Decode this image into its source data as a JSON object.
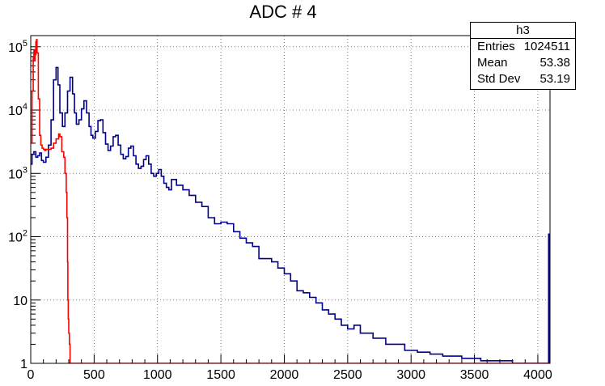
{
  "chart_data": {
    "type": "line",
    "title": "ADC # 4",
    "xlabel": "",
    "ylabel": "",
    "xlim": [
      0,
      4096
    ],
    "ylim": [
      1,
      150000
    ],
    "yscale": "log",
    "grid": true,
    "x_ticks": [
      0,
      500,
      1000,
      1500,
      2000,
      2500,
      3000,
      3500,
      4000
    ],
    "x_tick_labels": [
      "0",
      "500",
      "1000",
      "1500",
      "2000",
      "2500",
      "3000",
      "3500",
      "4000"
    ],
    "y_ticks": [
      1,
      10,
      100,
      1000,
      10000,
      100000
    ],
    "y_tick_labels": [
      {
        "base": "1",
        "exp": ""
      },
      {
        "base": "10",
        "exp": ""
      },
      {
        "base": "10",
        "exp": "2"
      },
      {
        "base": "10",
        "exp": "3"
      },
      {
        "base": "10",
        "exp": "4"
      },
      {
        "base": "10",
        "exp": "5"
      }
    ],
    "series": [
      {
        "color": "#00008b",
        "x": [
          0,
          10,
          25,
          40,
          55,
          70,
          85,
          100,
          120,
          140,
          160,
          180,
          200,
          215,
          230,
          250,
          270,
          290,
          310,
          330,
          345,
          360,
          380,
          400,
          420,
          440,
          460,
          475,
          490,
          510,
          530,
          550,
          570,
          590,
          610,
          630,
          650,
          670,
          690,
          710,
          730,
          750,
          770,
          790,
          810,
          830,
          850,
          870,
          890,
          910,
          930,
          950,
          970,
          990,
          1010,
          1030,
          1050,
          1070,
          1090,
          1110,
          1150,
          1200,
          1250,
          1300,
          1350,
          1400,
          1450,
          1500,
          1550,
          1600,
          1650,
          1700,
          1750,
          1800,
          1850,
          1900,
          1950,
          2000,
          2050,
          2100,
          2150,
          2200,
          2250,
          2300,
          2350,
          2400,
          2450,
          2500,
          2550,
          2600,
          2650,
          2700,
          2750,
          2800,
          2850,
          2900,
          2950,
          3000,
          3050,
          3100,
          3150,
          3200,
          3250,
          3300,
          3350,
          3400,
          3450,
          3500,
          3550,
          3600,
          3650,
          3700,
          3750,
          3800,
          3850,
          4060,
          4070,
          4080,
          4085,
          4090
        ],
        "y": [
          1400,
          2000,
          2200,
          1800,
          1900,
          2100,
          1600,
          1500,
          1800,
          2800,
          7000,
          30000,
          47000,
          25000,
          9000,
          5500,
          9000,
          20000,
          33000,
          18000,
          9000,
          6000,
          7000,
          10500,
          14000,
          9000,
          5500,
          4000,
          3600,
          4600,
          6800,
          7000,
          4400,
          2900,
          2300,
          2700,
          3800,
          4000,
          2800,
          2000,
          1700,
          1850,
          2500,
          2700,
          1900,
          1400,
          1200,
          1300,
          1650,
          1900,
          1400,
          1000,
          900,
          1000,
          1150,
          900,
          700,
          600,
          550,
          800,
          650,
          550,
          450,
          350,
          300,
          200,
          160,
          170,
          160,
          120,
          95,
          80,
          70,
          45,
          45,
          40,
          32,
          26,
          20,
          14,
          13,
          11,
          9,
          7,
          6,
          5,
          4,
          3.5,
          4,
          3,
          3,
          2.5,
          2.5,
          2,
          2,
          2,
          1.6,
          1.6,
          1.5,
          1.5,
          1.4,
          1.4,
          1.3,
          1.3,
          1.3,
          1.2,
          1.2,
          1.2,
          1.1,
          1.1,
          1.1,
          1.1,
          1.1,
          1,
          1,
          1,
          1,
          1,
          110,
          1
        ]
      },
      {
        "color": "#ff0000",
        "x": [
          0,
          10,
          20,
          25,
          30,
          35,
          40,
          45,
          50,
          60,
          70,
          80,
          90,
          100,
          110,
          120,
          140,
          160,
          180,
          200,
          220,
          230,
          245,
          260,
          270,
          280,
          285,
          290,
          293,
          296,
          300,
          305,
          310,
          320,
          500,
          1000,
          2000,
          3000,
          4096
        ],
        "y": [
          3000,
          20000,
          70000,
          90000,
          60000,
          75000,
          120000,
          130000,
          80000,
          15000,
          4000,
          2800,
          2500,
          2400,
          2300,
          2400,
          2400,
          2500,
          3000,
          3500,
          4200,
          3800,
          2200,
          1800,
          1000,
          500,
          200,
          40,
          10,
          5,
          3,
          2,
          1,
          1,
          1,
          1,
          1,
          1,
          1
        ]
      }
    ]
  },
  "stats": {
    "name": "h3",
    "rows": [
      {
        "label": "Entries",
        "value": "1024511"
      },
      {
        "label": "Mean",
        "value": "53.38"
      },
      {
        "label": "Std Dev",
        "value": "53.19"
      }
    ]
  }
}
